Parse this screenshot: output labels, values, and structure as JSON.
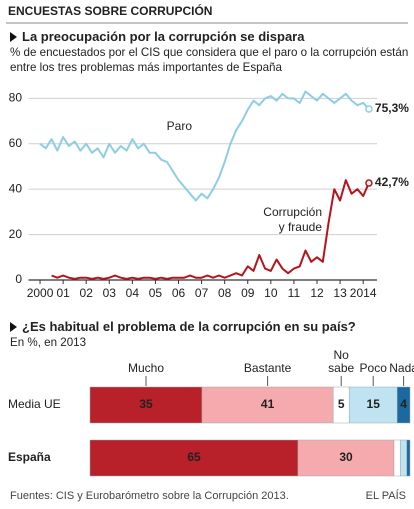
{
  "header": "ENCUESTAS SOBRE CORRUPCIÓN",
  "source": "Fuentes: CIS y Eurobarómetro sobre la Corrupción 2013.",
  "credit": "EL PAÍS",
  "chart_data": [
    {
      "type": "line",
      "title": "La preocupación por la corrupción se dispara",
      "subtitle": "% de encuestados por el CIS que considera que el paro o la corrupción están entre los tres problemas más importantes de España",
      "x": [
        2000,
        2000.25,
        2000.5,
        2000.75,
        2001,
        2001.25,
        2001.5,
        2001.75,
        2002,
        2002.25,
        2002.5,
        2002.75,
        2003,
        2003.25,
        2003.5,
        2003.75,
        2004,
        2004.25,
        2004.5,
        2004.75,
        2005,
        2005.25,
        2005.5,
        2005.75,
        2006,
        2006.25,
        2006.5,
        2006.75,
        2007,
        2007.25,
        2007.5,
        2007.75,
        2008,
        2008.25,
        2008.5,
        2008.75,
        2009,
        2009.25,
        2009.5,
        2009.75,
        2010,
        2010.25,
        2010.5,
        2010.75,
        2011,
        2011.25,
        2011.5,
        2011.75,
        2012,
        2012.25,
        2012.5,
        2012.75,
        2013,
        2013.25,
        2013.5,
        2013.75,
        2014,
        2014.25
      ],
      "series": [
        {
          "name": "Paro",
          "color": "#8ecde2",
          "values": [
            60,
            58,
            62,
            57,
            63,
            59,
            61,
            57,
            60,
            56,
            58,
            54,
            60,
            56,
            59,
            57,
            62,
            58,
            60,
            56,
            56,
            53,
            52,
            48,
            44,
            41,
            38,
            35,
            38,
            36,
            40,
            45,
            52,
            60,
            66,
            70,
            75,
            79,
            77,
            80,
            81,
            79,
            82,
            80,
            80,
            78,
            83,
            81,
            79,
            82,
            80,
            78,
            80,
            82,
            79,
            77,
            78,
            75.3
          ],
          "value_labels": [
            null,
            null,
            null,
            null,
            null,
            null,
            null,
            null,
            null,
            null,
            null,
            null,
            null,
            null,
            null,
            null,
            null,
            null,
            null,
            null,
            null,
            null,
            null,
            null,
            null,
            null,
            null,
            null,
            null,
            null,
            null,
            null,
            null,
            null,
            null,
            null,
            null,
            null,
            null,
            null,
            null,
            null,
            null,
            null,
            null,
            null,
            null,
            null,
            null,
            null,
            null,
            null,
            null,
            null,
            null,
            null,
            null,
            "75,3%"
          ]
        },
        {
          "name": "Corrupción y fraude",
          "color": "#b5141c",
          "values": [
            null,
            null,
            2,
            1,
            2,
            1,
            0.5,
            1,
            1,
            0.5,
            1,
            0.5,
            1,
            2,
            1,
            0.5,
            1,
            0.5,
            1,
            1,
            0.5,
            1,
            0.5,
            1,
            1,
            1,
            2,
            1,
            1,
            2,
            1,
            2,
            1,
            2,
            3,
            2,
            6,
            4,
            11,
            5,
            4,
            9,
            5,
            3,
            5,
            6,
            13,
            8,
            10,
            8,
            25,
            40,
            35,
            44,
            38,
            40,
            37,
            42.7
          ],
          "value_labels": [
            null,
            null,
            null,
            null,
            null,
            null,
            null,
            null,
            null,
            null,
            null,
            null,
            null,
            null,
            null,
            null,
            null,
            null,
            null,
            null,
            null,
            null,
            null,
            null,
            null,
            null,
            null,
            null,
            null,
            null,
            null,
            null,
            null,
            null,
            null,
            null,
            null,
            null,
            null,
            null,
            null,
            null,
            null,
            null,
            null,
            null,
            null,
            null,
            null,
            null,
            null,
            null,
            null,
            null,
            null,
            null,
            null,
            "42,7%"
          ]
        }
      ],
      "xlim": [
        1999.5,
        2014.6
      ],
      "xticks": [
        2000,
        {
          "value": 2001,
          "label": "01"
        },
        {
          "value": 2002,
          "label": "02"
        },
        {
          "value": 2003,
          "label": "03"
        },
        {
          "value": 2004,
          "label": "04"
        },
        {
          "value": 2005,
          "label": "05"
        },
        {
          "value": 2006,
          "label": "06"
        },
        {
          "value": 2007,
          "label": "07"
        },
        {
          "value": 2008,
          "label": "08"
        },
        {
          "value": 2009,
          "label": "09"
        },
        {
          "value": 2010,
          "label": "10"
        },
        {
          "value": 2011,
          "label": "11"
        },
        {
          "value": 2012,
          "label": "12"
        },
        {
          "value": 2013,
          "label": "13"
        },
        2014
      ],
      "ylim": [
        0,
        85
      ],
      "yticks": [
        0,
        20,
        40,
        60,
        80
      ],
      "grid": true
    },
    {
      "type": "stacked-bar",
      "orientation": "horizontal",
      "title": "¿Es habitual el problema de la corrupción en su país?",
      "subtitle": "En %, en 2013",
      "categories": [
        "Media UE",
        "España"
      ],
      "series": [
        {
          "name": "Mucho",
          "color": "#b8202a",
          "values": [
            35,
            65
          ]
        },
        {
          "name": "Bastante",
          "color": "#f5aaad",
          "values": [
            41,
            30
          ]
        },
        {
          "name": "No sabe",
          "color": "#ffffff",
          "values": [
            5,
            2
          ]
        },
        {
          "name": "Poco",
          "color": "#bfe3f0",
          "values": [
            15,
            2
          ]
        },
        {
          "name": "Nada",
          "color": "#1a69a0",
          "values": [
            4,
            1
          ]
        }
      ],
      "xlim": [
        0,
        100
      ]
    }
  ]
}
